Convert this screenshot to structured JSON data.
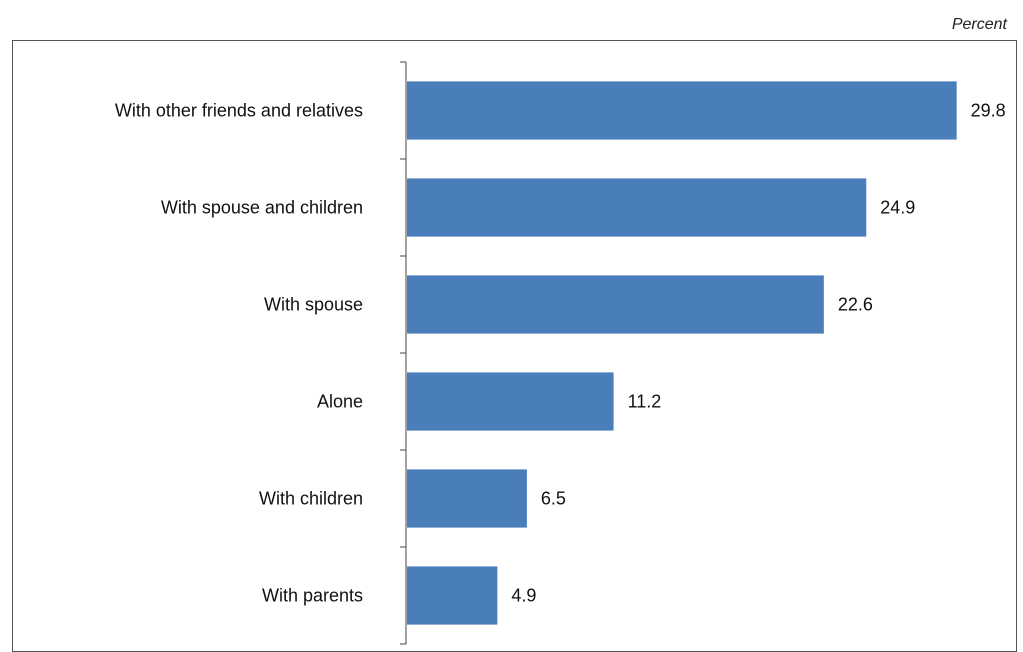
{
  "chart_data": {
    "type": "bar",
    "orientation": "horizontal",
    "unit_label": "Percent",
    "categories": [
      "With other friends and relatives",
      "With spouse and children",
      "With spouse",
      "Alone",
      "With children",
      "With parents"
    ],
    "values": [
      29.8,
      24.9,
      22.6,
      11.2,
      6.5,
      4.9
    ],
    "value_labels": [
      "29.8",
      "24.9",
      "22.6",
      "11.2",
      "6.5",
      "4.9"
    ],
    "xlim": [
      0,
      31.5
    ],
    "grid": false,
    "legend": "none",
    "bar_color": "#4A7EBB"
  }
}
